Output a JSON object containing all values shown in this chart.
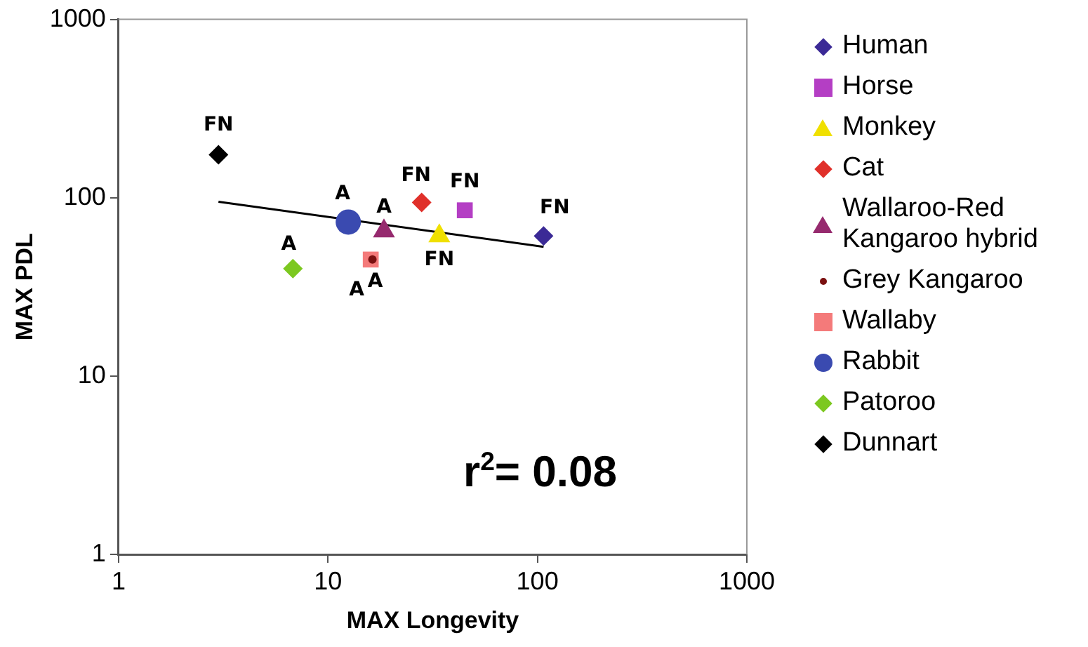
{
  "chart_data": {
    "type": "scatter",
    "xlabel": "MAX Longevity",
    "ylabel": "MAX PDL",
    "log": "xy",
    "xlim": [
      1,
      1000
    ],
    "ylim": [
      1,
      1000
    ],
    "xticks": [
      1,
      10,
      100,
      1000
    ],
    "yticks": [
      1,
      10,
      100,
      1000
    ],
    "grid": false,
    "legend": "right",
    "series": [
      {
        "name": "Human",
        "color": "#3b2a96",
        "marker": "diamond",
        "x": [
          107
        ],
        "values": [
          61
        ]
      },
      {
        "name": "Horse",
        "color": "#b43ec4",
        "marker": "square",
        "x": [
          45
        ],
        "values": [
          85
        ]
      },
      {
        "name": "Monkey",
        "color": "#f0e000",
        "marker": "triangle",
        "x": [
          34
        ],
        "values": [
          61
        ]
      },
      {
        "name": "Cat",
        "color": "#e0302a",
        "marker": "diamond",
        "x": [
          28
        ],
        "values": [
          94
        ]
      },
      {
        "name": "Wallaroo-Red Kangaroo hybrid",
        "color": "#962a6e",
        "marker": "triangle",
        "x": [
          18.5
        ],
        "values": [
          65
        ]
      },
      {
        "name": "Grey Kangaroo",
        "color": "#7a1010",
        "marker": "dot",
        "x": [
          16.3
        ],
        "values": [
          45
        ]
      },
      {
        "name": "Wallaby",
        "color": "#f47a7a",
        "marker": "square",
        "x": [
          16
        ],
        "values": [
          45
        ]
      },
      {
        "name": "Rabbit",
        "color": "#3a4ab0",
        "marker": "circle",
        "x": [
          12.5
        ],
        "values": [
          73
        ]
      },
      {
        "name": "Patoroo",
        "color": "#7cc820",
        "marker": "diamond",
        "x": [
          6.8
        ],
        "values": [
          40
        ]
      },
      {
        "name": "Dunnart",
        "color": "#000000",
        "marker": "diamond",
        "x": [
          3
        ],
        "values": [
          174
        ]
      },
      {
        "type": "line",
        "color": "#000000",
        "marker": "none",
        "x": [
          3,
          107
        ],
        "values": [
          95,
          53
        ]
      }
    ],
    "annotations": [
      {
        "text": "FN",
        "x": 107,
        "y": 61
      },
      {
        "text": "FN",
        "x": 45,
        "y": 85
      },
      {
        "text": "FN",
        "x": 34,
        "y": 61
      },
      {
        "text": "FN",
        "x": 28,
        "y": 94
      },
      {
        "text": "A",
        "x": 18.5,
        "y": 65
      },
      {
        "text": "A",
        "x": 16.3,
        "y": 45
      },
      {
        "text": "A",
        "x": 16,
        "y": 45
      },
      {
        "text": "A",
        "x": 12.5,
        "y": 73
      },
      {
        "text": "A",
        "x": 6.8,
        "y": 40
      },
      {
        "text": "FN",
        "x": 3,
        "y": 174
      },
      "r$^{2}$= 0.08"
    ]
  }
}
